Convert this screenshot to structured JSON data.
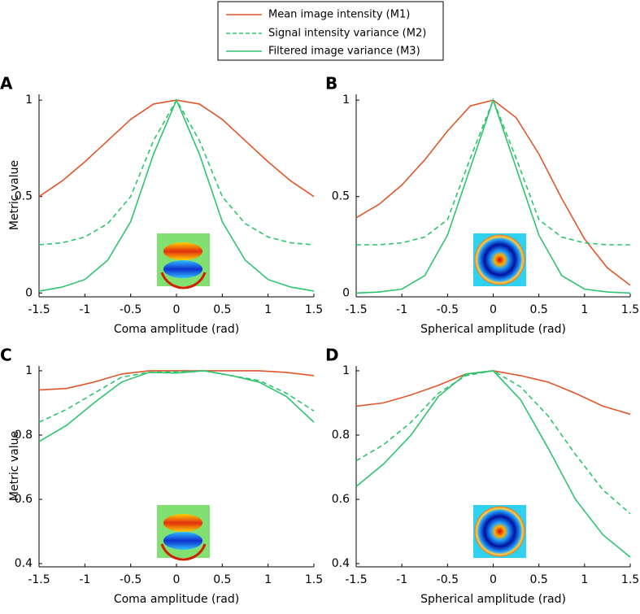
{
  "chart_data": [
    {
      "type": "line",
      "label": "A",
      "ylabel": "Metric value",
      "xlabel": "Coma amplitude (rad)",
      "x": [
        -1.5,
        -1.25,
        -1,
        -0.75,
        -0.5,
        -0.25,
        0,
        0.25,
        0.5,
        0.75,
        1,
        1.25,
        1.5
      ],
      "series": [
        {
          "name": "Mean image intensity (M1)",
          "color": "#e0562a",
          "dashed": false,
          "values": [
            0.5,
            0.58,
            0.68,
            0.79,
            0.9,
            0.98,
            1.0,
            0.98,
            0.9,
            0.79,
            0.68,
            0.58,
            0.5
          ]
        },
        {
          "name": "Signal intensity variance (M2)",
          "color": "#2dc46e",
          "dashed": true,
          "values": [
            0.25,
            0.26,
            0.29,
            0.36,
            0.5,
            0.79,
            1.0,
            0.79,
            0.5,
            0.36,
            0.29,
            0.26,
            0.25
          ]
        },
        {
          "name": "Filtered image variance (M3)",
          "color": "#2dc46e",
          "dashed": false,
          "values": [
            0.01,
            0.03,
            0.07,
            0.17,
            0.37,
            0.72,
            1.0,
            0.72,
            0.37,
            0.17,
            0.07,
            0.03,
            0.01
          ]
        }
      ],
      "xlim": [
        -1.5,
        1.5
      ],
      "xticks": [
        -1.5,
        -1,
        -0.5,
        0,
        0.5,
        1,
        1.5
      ],
      "ylim": [
        -0.02,
        1.03
      ],
      "yticks": [
        0,
        0.5,
        1
      ]
    },
    {
      "type": "line",
      "label": "B",
      "xlabel": "Spherical amplitude (rad)",
      "x": [
        -1.5,
        -1.25,
        -1,
        -0.75,
        -0.5,
        -0.25,
        0,
        0.25,
        0.5,
        0.75,
        1,
        1.25,
        1.5
      ],
      "series": [
        {
          "color": "#e0562a",
          "dashed": false,
          "values": [
            0.39,
            0.46,
            0.56,
            0.69,
            0.84,
            0.97,
            1.0,
            0.91,
            0.72,
            0.49,
            0.28,
            0.13,
            0.04
          ]
        },
        {
          "color": "#2dc46e",
          "dashed": true,
          "values": [
            0.25,
            0.25,
            0.26,
            0.29,
            0.38,
            0.7,
            1.0,
            0.7,
            0.38,
            0.29,
            0.26,
            0.25,
            0.25
          ]
        },
        {
          "color": "#2dc46e",
          "dashed": false,
          "values": [
            0,
            0.005,
            0.02,
            0.09,
            0.3,
            0.65,
            1.0,
            0.65,
            0.3,
            0.09,
            0.02,
            0.005,
            0
          ]
        }
      ],
      "xlim": [
        -1.5,
        1.5
      ],
      "xticks": [
        -1.5,
        -1,
        -0.5,
        0,
        0.5,
        1,
        1.5
      ],
      "ylim": [
        -0.02,
        1.03
      ],
      "yticks": [
        0,
        0.5,
        1
      ]
    },
    {
      "type": "line",
      "label": "C",
      "ylabel": "Metric value",
      "xlabel": "Coma amplitude (rad)",
      "x": [
        -1.5,
        -1.2,
        -0.9,
        -0.6,
        -0.3,
        0,
        0.3,
        0.6,
        0.9,
        1.2,
        1.5
      ],
      "series": [
        {
          "color": "#e0562a",
          "dashed": false,
          "values": [
            0.94,
            0.945,
            0.965,
            0.99,
            1.0,
            1.0,
            1.0,
            1.0,
            1.0,
            0.995,
            0.985
          ]
        },
        {
          "color": "#2dc46e",
          "dashed": true,
          "values": [
            0.84,
            0.88,
            0.93,
            0.98,
            0.995,
            0.997,
            1.0,
            0.985,
            0.97,
            0.93,
            0.875
          ]
        },
        {
          "color": "#2dc46e",
          "dashed": false,
          "values": [
            0.78,
            0.83,
            0.9,
            0.965,
            0.995,
            0.993,
            1.0,
            0.985,
            0.965,
            0.92,
            0.84
          ]
        }
      ],
      "xlim": [
        -1.5,
        1.5
      ],
      "xticks": [
        -1.5,
        -1,
        -0.5,
        0,
        0.5,
        1,
        1.5
      ],
      "ylim": [
        0.39,
        1.015
      ],
      "yticks": [
        0.4,
        0.6,
        0.8,
        1
      ]
    },
    {
      "type": "line",
      "label": "D",
      "xlabel": "Spherical amplitude (rad)",
      "x": [
        -1.5,
        -1.2,
        -0.9,
        -0.6,
        -0.3,
        0,
        0.3,
        0.6,
        0.9,
        1.2,
        1.5
      ],
      "series": [
        {
          "color": "#e0562a",
          "dashed": false,
          "values": [
            0.89,
            0.9,
            0.925,
            0.955,
            0.99,
            1.0,
            0.985,
            0.965,
            0.93,
            0.89,
            0.865
          ]
        },
        {
          "color": "#2dc46e",
          "dashed": true,
          "values": [
            0.72,
            0.77,
            0.84,
            0.93,
            0.985,
            1.0,
            0.95,
            0.86,
            0.74,
            0.63,
            0.555
          ]
        },
        {
          "color": "#2dc46e",
          "dashed": false,
          "values": [
            0.64,
            0.71,
            0.8,
            0.92,
            0.99,
            1.0,
            0.91,
            0.76,
            0.6,
            0.49,
            0.42
          ]
        }
      ],
      "xlim": [
        -1.5,
        1.5
      ],
      "xticks": [
        -1.5,
        -1,
        -0.5,
        0,
        0.5,
        1,
        1.5
      ],
      "ylim": [
        0.39,
        1.015
      ],
      "yticks": [
        0.4,
        0.6,
        0.8,
        1
      ]
    }
  ]
}
